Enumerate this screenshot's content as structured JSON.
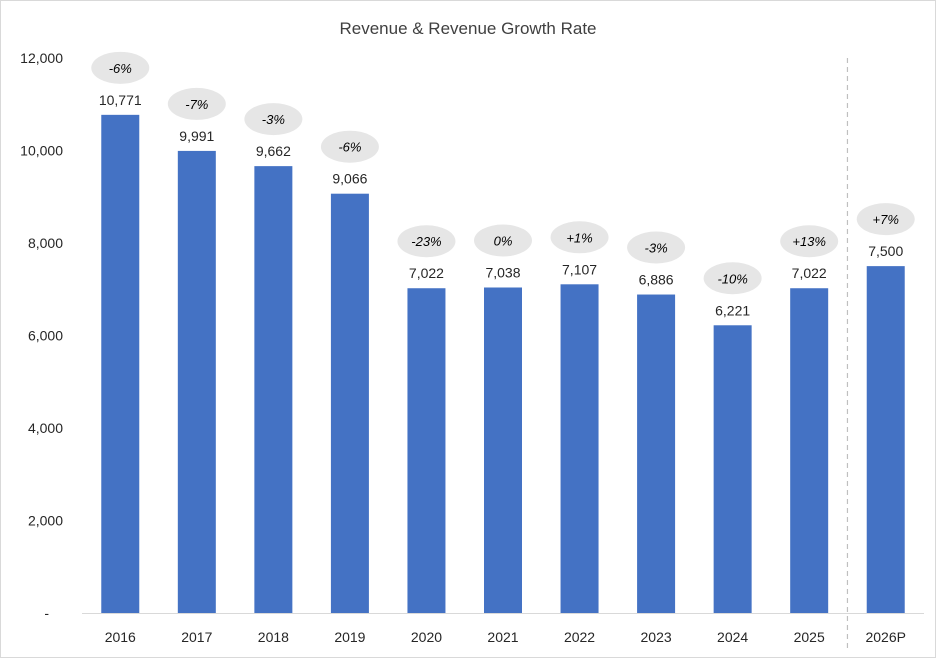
{
  "chart_data": {
    "type": "bar",
    "title": "Revenue & Revenue Growth Rate",
    "xlabel": "",
    "ylabel": "",
    "ylim": [
      0,
      12000
    ],
    "y_ticks": [
      0,
      2000,
      4000,
      6000,
      8000,
      10000,
      12000
    ],
    "y_tick_labels": [
      "-",
      "2,000",
      "4,000",
      "6,000",
      "8,000",
      "10,000",
      "12,000"
    ],
    "grid": false,
    "legend": "none",
    "categories": [
      "2016",
      "2017",
      "2018",
      "2019",
      "2020",
      "2021",
      "2022",
      "2023",
      "2024",
      "2025",
      "2026P"
    ],
    "values": [
      10771,
      9991,
      9662,
      9066,
      7022,
      7038,
      7107,
      6886,
      6221,
      7022,
      7500
    ],
    "value_labels": [
      "10,771",
      "9,991",
      "9,662",
      "9,066",
      "7,022",
      "7,038",
      "7,107",
      "6,886",
      "6,221",
      "7,022",
      "7,500"
    ],
    "growth_labels": [
      "-6%",
      "-7%",
      "-3%",
      "-6%",
      "-23%",
      "0%",
      "+1%",
      "-3%",
      "-10%",
      "+13%",
      "+7%"
    ],
    "projection_divider_after": "2025",
    "colors": {
      "bar": "#4472C4",
      "bubble": "#E6E6E6",
      "divider": "#BFBFBF",
      "axis": "#D9D9D9"
    }
  }
}
